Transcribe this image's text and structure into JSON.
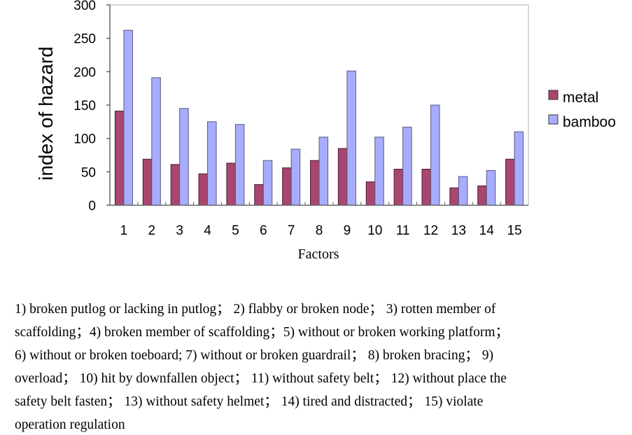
{
  "chart_data": {
    "type": "bar",
    "title": "",
    "xlabel": "Factors",
    "ylabel": "index of hazard",
    "ylim": [
      0,
      300
    ],
    "yticks": [
      0,
      50,
      100,
      150,
      200,
      250,
      300
    ],
    "categories": [
      "1",
      "2",
      "3",
      "4",
      "5",
      "6",
      "7",
      "8",
      "9",
      "10",
      "11",
      "12",
      "13",
      "14",
      "15"
    ],
    "series": [
      {
        "name": "metal",
        "color": "#a8466f",
        "values": [
          141,
          69,
          61,
          47,
          63,
          31,
          56,
          67,
          85,
          35,
          54,
          54,
          26,
          29,
          69
        ]
      },
      {
        "name": "bamboo",
        "color": "#a8acff",
        "values": [
          262,
          191,
          145,
          125,
          121,
          67,
          84,
          102,
          201,
          102,
          117,
          150,
          43,
          52,
          110
        ]
      }
    ],
    "legend": "right",
    "grid": false
  },
  "caption": {
    "lines": [
      "1) broken putlog or lacking in putlog； 2) flabby or broken node； 3) rotten member of",
      "scaffolding；4) broken member of scaffolding；5) without or broken working platform；",
      "6) without or broken toeboard; 7) without or broken guardrail； 8) broken bracing； 9)",
      "overload； 10) hit by downfallen object； 11) without safety belt； 12) without place the",
      "safety belt fasten； 13) without safety helmet； 14) tired and distracted； 15) violate",
      "operation regulation"
    ]
  }
}
